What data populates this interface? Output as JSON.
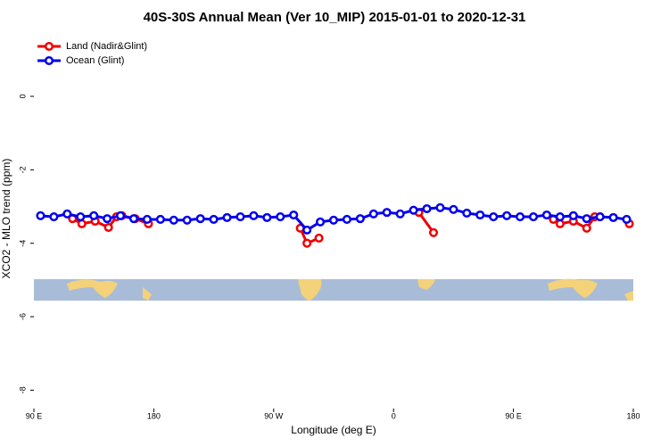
{
  "chart_data": {
    "type": "line",
    "title": "40S-30S Annual Mean (Ver 10_MIP)   2015-01-01 to 2020-12-31",
    "x_label": "Longitude (deg E)",
    "y_label": "XCO2 - MLO trend (ppm)",
    "xlim": [
      90,
      540
    ],
    "ylim": [
      -8.5,
      1.7
    ],
    "xticks": [
      {
        "value": 90,
        "label": "90 E"
      },
      180,
      {
        "value": 270,
        "label": "90 W"
      },
      {
        "value": 360,
        "label": "0"
      },
      {
        "value": 450,
        "label": "90 E"
      },
      {
        "value": 540,
        "label": "180"
      }
    ],
    "yticks": [
      0,
      -2,
      -4,
      -6,
      -8
    ],
    "legend": "top-left",
    "series": [
      {
        "name": "Land (Nadir&Glint)",
        "color": "#ee0000",
        "x": [
          119,
          126,
          136,
          146,
          152,
          156,
          166,
          176,
          230,
          290,
          295,
          304,
          340,
          379,
          390,
          430,
          480,
          485,
          495,
          505,
          511,
          515,
          525,
          537
        ],
        "values": [
          -3.33,
          -3.47,
          -3.4,
          -3.57,
          -3.28,
          -3.25,
          -3.33,
          -3.47,
          null,
          -3.59,
          -4.0,
          -3.86,
          null,
          -3.16,
          -3.71,
          null,
          -3.35,
          -3.47,
          -3.4,
          -3.59,
          -3.28,
          -3.28,
          null,
          -3.47
        ]
      },
      {
        "name": "Ocean (Glint)",
        "color": "#0000ee",
        "x": [
          95,
          105,
          115,
          125,
          135,
          145,
          155,
          165,
          175,
          185,
          195,
          205,
          215,
          225,
          235,
          245,
          255,
          265,
          275,
          285,
          295,
          305,
          315,
          325,
          335,
          345,
          355,
          365,
          375,
          385,
          395,
          405,
          415,
          425,
          435,
          445,
          455,
          465,
          475,
          485,
          495,
          505,
          515,
          525,
          535
        ],
        "values": [
          -3.25,
          -3.28,
          -3.2,
          -3.28,
          -3.25,
          -3.33,
          -3.25,
          -3.33,
          -3.35,
          -3.35,
          -3.37,
          -3.37,
          -3.33,
          -3.35,
          -3.3,
          -3.28,
          -3.25,
          -3.3,
          -3.28,
          -3.23,
          -3.64,
          -3.42,
          -3.37,
          -3.35,
          -3.33,
          -3.2,
          -3.16,
          -3.2,
          -3.1,
          -3.06,
          -3.03,
          -3.08,
          -3.18,
          -3.23,
          -3.28,
          -3.25,
          -3.28,
          -3.28,
          -3.23,
          -3.28,
          -3.25,
          -3.33,
          -3.28,
          -3.3,
          -3.35
        ]
      }
    ]
  }
}
